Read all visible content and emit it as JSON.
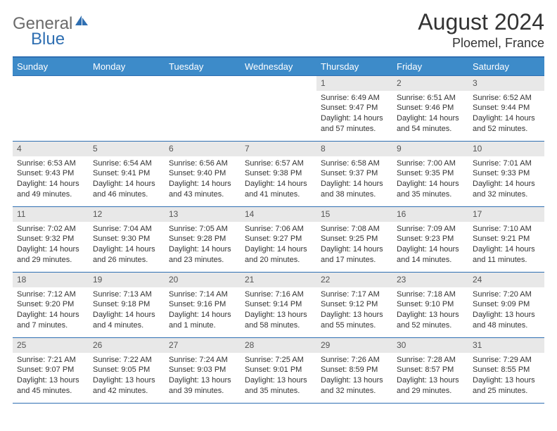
{
  "logo": {
    "word1": "General",
    "word2": "Blue"
  },
  "title": "August 2024",
  "location": "Ploemel, France",
  "colors": {
    "header_bg": "#3d8bc9",
    "border": "#2f6fb2",
    "daynum_bg": "#e8e8e8",
    "text": "#333333",
    "logo_gray": "#6b6b6b",
    "logo_blue": "#2f6fb2"
  },
  "dow": [
    "Sunday",
    "Monday",
    "Tuesday",
    "Wednesday",
    "Thursday",
    "Friday",
    "Saturday"
  ],
  "weeks": [
    [
      null,
      null,
      null,
      null,
      {
        "n": "1",
        "sr": "6:49 AM",
        "ss": "9:47 PM",
        "dl": "14 hours and 57 minutes."
      },
      {
        "n": "2",
        "sr": "6:51 AM",
        "ss": "9:46 PM",
        "dl": "14 hours and 54 minutes."
      },
      {
        "n": "3",
        "sr": "6:52 AM",
        "ss": "9:44 PM",
        "dl": "14 hours and 52 minutes."
      }
    ],
    [
      {
        "n": "4",
        "sr": "6:53 AM",
        "ss": "9:43 PM",
        "dl": "14 hours and 49 minutes."
      },
      {
        "n": "5",
        "sr": "6:54 AM",
        "ss": "9:41 PM",
        "dl": "14 hours and 46 minutes."
      },
      {
        "n": "6",
        "sr": "6:56 AM",
        "ss": "9:40 PM",
        "dl": "14 hours and 43 minutes."
      },
      {
        "n": "7",
        "sr": "6:57 AM",
        "ss": "9:38 PM",
        "dl": "14 hours and 41 minutes."
      },
      {
        "n": "8",
        "sr": "6:58 AM",
        "ss": "9:37 PM",
        "dl": "14 hours and 38 minutes."
      },
      {
        "n": "9",
        "sr": "7:00 AM",
        "ss": "9:35 PM",
        "dl": "14 hours and 35 minutes."
      },
      {
        "n": "10",
        "sr": "7:01 AM",
        "ss": "9:33 PM",
        "dl": "14 hours and 32 minutes."
      }
    ],
    [
      {
        "n": "11",
        "sr": "7:02 AM",
        "ss": "9:32 PM",
        "dl": "14 hours and 29 minutes."
      },
      {
        "n": "12",
        "sr": "7:04 AM",
        "ss": "9:30 PM",
        "dl": "14 hours and 26 minutes."
      },
      {
        "n": "13",
        "sr": "7:05 AM",
        "ss": "9:28 PM",
        "dl": "14 hours and 23 minutes."
      },
      {
        "n": "14",
        "sr": "7:06 AM",
        "ss": "9:27 PM",
        "dl": "14 hours and 20 minutes."
      },
      {
        "n": "15",
        "sr": "7:08 AM",
        "ss": "9:25 PM",
        "dl": "14 hours and 17 minutes."
      },
      {
        "n": "16",
        "sr": "7:09 AM",
        "ss": "9:23 PM",
        "dl": "14 hours and 14 minutes."
      },
      {
        "n": "17",
        "sr": "7:10 AM",
        "ss": "9:21 PM",
        "dl": "14 hours and 11 minutes."
      }
    ],
    [
      {
        "n": "18",
        "sr": "7:12 AM",
        "ss": "9:20 PM",
        "dl": "14 hours and 7 minutes."
      },
      {
        "n": "19",
        "sr": "7:13 AM",
        "ss": "9:18 PM",
        "dl": "14 hours and 4 minutes."
      },
      {
        "n": "20",
        "sr": "7:14 AM",
        "ss": "9:16 PM",
        "dl": "14 hours and 1 minute."
      },
      {
        "n": "21",
        "sr": "7:16 AM",
        "ss": "9:14 PM",
        "dl": "13 hours and 58 minutes."
      },
      {
        "n": "22",
        "sr": "7:17 AM",
        "ss": "9:12 PM",
        "dl": "13 hours and 55 minutes."
      },
      {
        "n": "23",
        "sr": "7:18 AM",
        "ss": "9:10 PM",
        "dl": "13 hours and 52 minutes."
      },
      {
        "n": "24",
        "sr": "7:20 AM",
        "ss": "9:09 PM",
        "dl": "13 hours and 48 minutes."
      }
    ],
    [
      {
        "n": "25",
        "sr": "7:21 AM",
        "ss": "9:07 PM",
        "dl": "13 hours and 45 minutes."
      },
      {
        "n": "26",
        "sr": "7:22 AM",
        "ss": "9:05 PM",
        "dl": "13 hours and 42 minutes."
      },
      {
        "n": "27",
        "sr": "7:24 AM",
        "ss": "9:03 PM",
        "dl": "13 hours and 39 minutes."
      },
      {
        "n": "28",
        "sr": "7:25 AM",
        "ss": "9:01 PM",
        "dl": "13 hours and 35 minutes."
      },
      {
        "n": "29",
        "sr": "7:26 AM",
        "ss": "8:59 PM",
        "dl": "13 hours and 32 minutes."
      },
      {
        "n": "30",
        "sr": "7:28 AM",
        "ss": "8:57 PM",
        "dl": "13 hours and 29 minutes."
      },
      {
        "n": "31",
        "sr": "7:29 AM",
        "ss": "8:55 PM",
        "dl": "13 hours and 25 minutes."
      }
    ]
  ],
  "labels": {
    "sunrise": "Sunrise:",
    "sunset": "Sunset:",
    "daylight": "Daylight:"
  }
}
